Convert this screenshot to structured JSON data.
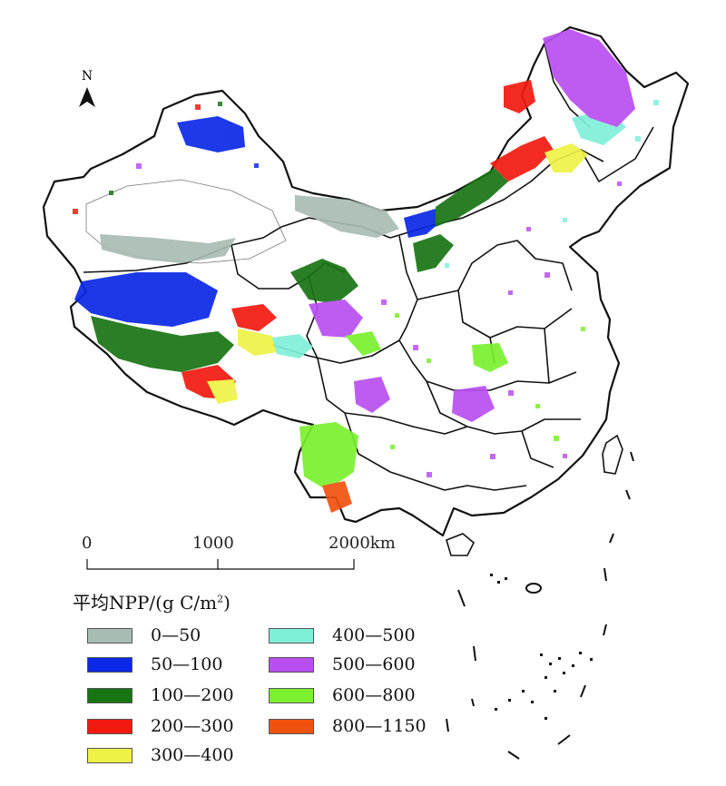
{
  "north_label": "N",
  "scale": {
    "ticks": [
      "0",
      "1000",
      "2000km"
    ]
  },
  "legend": {
    "title_prefix": "平均NPP/(g C/m",
    "title_sup": "2",
    "title_suffix": ")",
    "classes": [
      {
        "label": "0—50",
        "color": "#a9bcb3"
      },
      {
        "label": "50—100",
        "color": "#0a28e6"
      },
      {
        "label": "100—200",
        "color": "#187514"
      },
      {
        "label": "200—300",
        "color": "#f21a10"
      },
      {
        "label": "300—400",
        "color": "#eef245"
      },
      {
        "label": "400—500",
        "color": "#7ff0d8"
      },
      {
        "label": "500—600",
        "color": "#b94ff0"
      },
      {
        "label": "600—800",
        "color": "#7bf02f"
      },
      {
        "label": "800—1150",
        "color": "#f2520f"
      }
    ]
  }
}
